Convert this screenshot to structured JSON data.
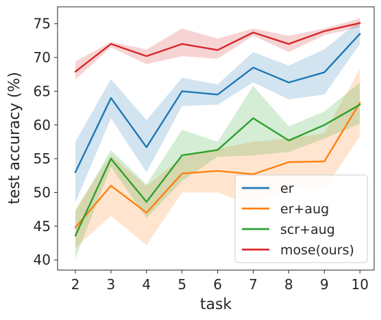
{
  "chart_data": {
    "type": "line",
    "title": "",
    "xlabel": "task",
    "ylabel": "test accuracy (%)",
    "x": [
      2,
      3,
      4,
      5,
      6,
      7,
      8,
      9,
      10
    ],
    "xlim": [
      1.5,
      10.4
    ],
    "ylim": [
      38.5,
      77.5
    ],
    "xticks": [
      "2",
      "3",
      "4",
      "5",
      "6",
      "7",
      "8",
      "9",
      "10"
    ],
    "yticks": [
      "40",
      "45",
      "50",
      "55",
      "60",
      "65",
      "70",
      "75"
    ],
    "ytick_values": [
      40,
      45,
      50,
      55,
      60,
      65,
      70,
      75
    ],
    "grid": false,
    "legend_position": "bottom-right",
    "series": [
      {
        "name": "er",
        "color": "#1f77b4",
        "values": [
          53.0,
          64.0,
          56.7,
          65.0,
          64.5,
          68.5,
          66.3,
          67.8,
          73.5
        ],
        "lower": [
          48.5,
          61.0,
          53.0,
          62.8,
          63.0,
          66.3,
          63.8,
          64.5,
          72.0
        ],
        "upper": [
          57.5,
          66.8,
          60.7,
          67.0,
          66.0,
          70.8,
          68.8,
          71.2,
          75.5
        ]
      },
      {
        "name": "er+aug",
        "color": "#ff7f0e",
        "values": [
          44.8,
          51.0,
          47.0,
          52.8,
          53.2,
          52.7,
          54.5,
          54.6,
          63.3
        ],
        "lower": [
          41.8,
          46.5,
          42.2,
          50.0,
          50.0,
          48.0,
          50.8,
          50.5,
          58.3
        ],
        "upper": [
          47.5,
          55.5,
          51.0,
          55.2,
          56.5,
          57.5,
          58.0,
          58.8,
          68.3
        ]
      },
      {
        "name": "scr+aug",
        "color": "#2ca02c",
        "values": [
          43.6,
          55.0,
          48.6,
          55.5,
          56.3,
          61.0,
          57.7,
          60.0,
          63.0
        ],
        "lower": [
          40.2,
          53.8,
          46.2,
          51.7,
          55.3,
          55.5,
          56.0,
          58.0,
          60.2
        ],
        "upper": [
          47.2,
          56.3,
          51.2,
          59.3,
          57.5,
          65.8,
          59.8,
          62.0,
          66.3
        ]
      },
      {
        "name": "mose(ours)",
        "color": "#d62728",
        "values": [
          67.9,
          72.0,
          70.2,
          72.0,
          71.1,
          73.7,
          72.0,
          73.9,
          75.1
        ],
        "lower": [
          66.7,
          71.5,
          69.0,
          70.2,
          69.8,
          73.2,
          70.8,
          73.3,
          74.5
        ],
        "upper": [
          69.4,
          72.3,
          71.2,
          74.3,
          72.8,
          74.3,
          73.2,
          74.3,
          75.8
        ]
      }
    ]
  }
}
